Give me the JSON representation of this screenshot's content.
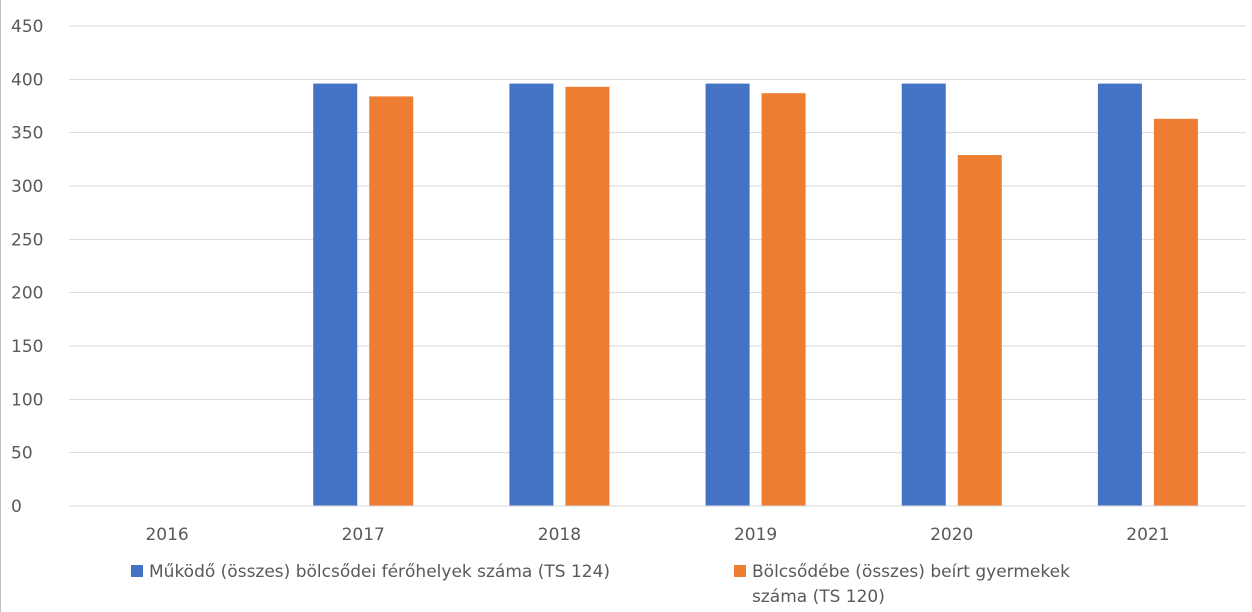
{
  "chart_data": {
    "type": "bar",
    "title": "",
    "categories": [
      "2016",
      "2017",
      "2018",
      "2019",
      "2020",
      "2021"
    ],
    "series": [
      {
        "name": "Működő (összes) bölcsődei férőhelyek száma (TS 124)",
        "color": "#4472c4",
        "values": [
          null,
          396,
          396,
          396,
          396,
          396
        ]
      },
      {
        "name": "Bölcsődébe (összes) beírt gyermekek száma (TS 120)",
        "color": "#ed7d31",
        "values": [
          null,
          384,
          393,
          387,
          329,
          363
        ]
      }
    ],
    "yticks": [
      "0",
      "50",
      "100",
      "150",
      "200",
      "250",
      "300",
      "350",
      "400",
      "450"
    ],
    "ylim": [
      0,
      450
    ],
    "grid": true,
    "legend_position": "bottom",
    "xlabel": "",
    "ylabel": ""
  }
}
